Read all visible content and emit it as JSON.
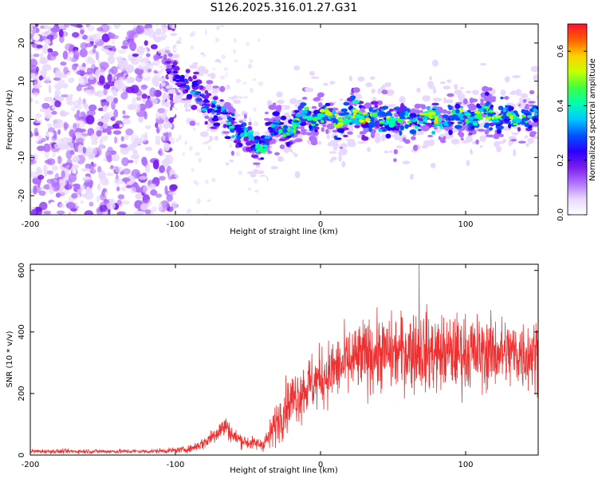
{
  "title": "S126.2025.316.01.27.G31",
  "chart_data": [
    {
      "type": "heatmap",
      "name": "spectrogram",
      "xlabel": "Height of straight line (km)",
      "ylabel": "Frequency (Hz)",
      "xlim": [
        -200,
        150
      ],
      "ylim": [
        -25,
        25
      ],
      "xticks": [
        -200,
        -100,
        0,
        100
      ],
      "yticks": [
        -20,
        -10,
        0,
        10,
        20
      ],
      "colorbar": {
        "label": "Normalized spectral amplitude",
        "range": [
          0,
          0.7
        ],
        "ticks": [
          0.0,
          0.2,
          0.4,
          0.6
        ],
        "colormap": [
          "#ffffff",
          "#e8d8ff",
          "#b070ff",
          "#7a1cf0",
          "#2a00ff",
          "#0055ff",
          "#00c8ff",
          "#00ffb0",
          "#40ff40",
          "#c8ff00",
          "#ffd000",
          "#ff6000",
          "#ff1030"
        ]
      },
      "ridge": {
        "height_km": [
          -100,
          -90,
          -80,
          -70,
          -60,
          -50,
          -45,
          -40,
          -35,
          -30,
          -20,
          -10,
          0,
          10,
          20,
          30,
          40,
          50,
          60,
          70,
          80,
          90,
          100,
          110,
          120,
          130,
          140,
          150
        ],
        "frequency_hz": [
          12,
          8,
          4,
          2,
          -2,
          -5,
          -7,
          -7,
          -4,
          -2,
          -2,
          1,
          1,
          0,
          0,
          1,
          0,
          0,
          0,
          1,
          0,
          1,
          0,
          1,
          1,
          0,
          1,
          1
        ],
        "peak_amplitude": [
          0.25,
          0.35,
          0.38,
          0.4,
          0.45,
          0.45,
          0.48,
          0.5,
          0.45,
          0.5,
          0.5,
          0.55,
          0.55,
          0.58,
          0.6,
          0.68,
          0.55,
          0.55,
          0.52,
          0.55,
          0.58,
          0.52,
          0.55,
          0.55,
          0.52,
          0.55,
          0.5,
          0.5
        ]
      },
      "noise_region_km": [
        -200,
        -100
      ]
    },
    {
      "type": "line",
      "name": "snr",
      "color": "#f03030",
      "xlabel": "Height of straight line (km)",
      "ylabel": "SNR (10 * v/v)",
      "xlim": [
        -200,
        150
      ],
      "ylim": [
        0,
        620
      ],
      "xticks": [
        -200,
        -100,
        0,
        100
      ],
      "yticks": [
        0,
        200,
        400,
        600
      ],
      "x": [
        -200,
        -180,
        -160,
        -140,
        -120,
        -100,
        -90,
        -80,
        -70,
        -65,
        -60,
        -50,
        -40,
        -35,
        -30,
        -25,
        -20,
        -10,
        0,
        10,
        20,
        30,
        40,
        50,
        60,
        70,
        80,
        90,
        100,
        110,
        120,
        130,
        140,
        150
      ],
      "mean": [
        12,
        12,
        12,
        12,
        12,
        15,
        20,
        40,
        80,
        95,
        60,
        40,
        35,
        60,
        110,
        150,
        180,
        220,
        250,
        280,
        300,
        320,
        330,
        330,
        340,
        340,
        330,
        330,
        335,
        330,
        335,
        330,
        330,
        330
      ],
      "spread": [
        5,
        5,
        5,
        5,
        5,
        6,
        8,
        15,
        25,
        25,
        20,
        15,
        15,
        35,
        50,
        60,
        60,
        70,
        70,
        75,
        80,
        85,
        85,
        85,
        90,
        95,
        90,
        85,
        90,
        85,
        85,
        80,
        85,
        85
      ],
      "max_spike": {
        "x": 68,
        "y": 620
      }
    }
  ]
}
